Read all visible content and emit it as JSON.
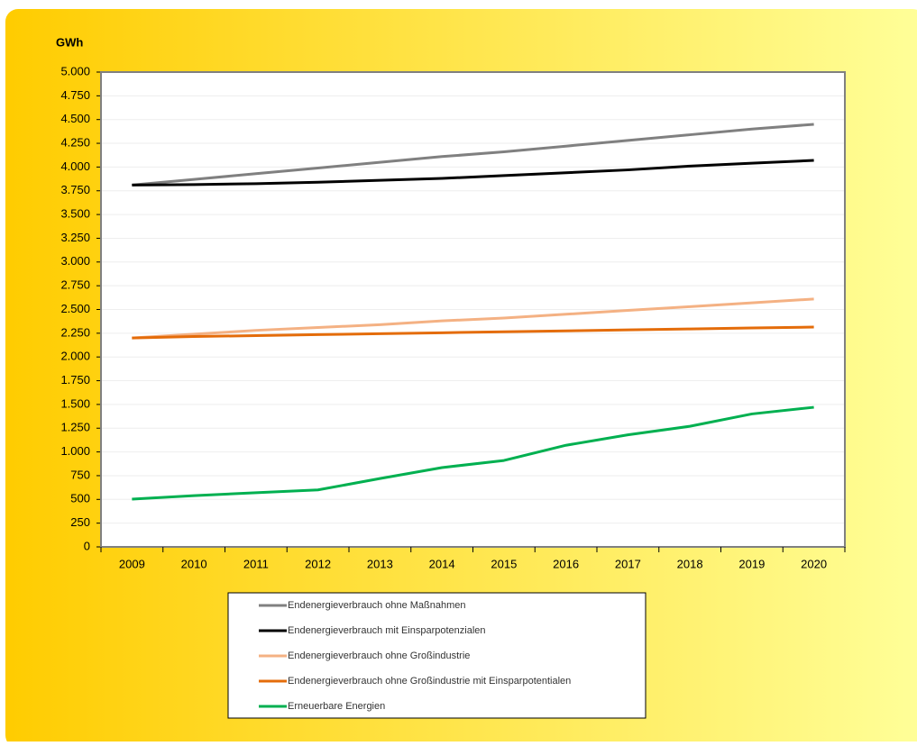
{
  "chart_data": {
    "type": "line",
    "y_label": "GWh",
    "categories": [
      "2009",
      "2010",
      "2011",
      "2012",
      "2013",
      "2014",
      "2015",
      "2016",
      "2017",
      "2018",
      "2019",
      "2020"
    ],
    "series": [
      {
        "name": "Endenergieverbrauch ohne Maßnahmen",
        "color": "#808080",
        "values": [
          3810,
          3870,
          3930,
          3990,
          4050,
          4110,
          4160,
          4220,
          4280,
          4340,
          4400,
          4450
        ]
      },
      {
        "name": "Endenergieverbrauch mit Einsparpotenzialen",
        "color": "#000000",
        "values": [
          3810,
          3815,
          3825,
          3840,
          3860,
          3880,
          3910,
          3940,
          3970,
          4010,
          4040,
          4070
        ]
      },
      {
        "name": "Endenergieverbrauch ohne Großindustrie",
        "color": "#f4b183",
        "values": [
          2200,
          2240,
          2280,
          2310,
          2340,
          2380,
          2410,
          2450,
          2490,
          2530,
          2570,
          2610
        ]
      },
      {
        "name": "Endenergieverbrauch ohne Großindustrie mit Einsparpotentialen",
        "color": "#e46c0a",
        "values": [
          2200,
          2215,
          2225,
          2235,
          2245,
          2255,
          2265,
          2275,
          2285,
          2295,
          2305,
          2315
        ]
      },
      {
        "name": "Erneuerbare Energien",
        "color": "#00b050",
        "values": [
          503,
          540,
          570,
          600,
          720,
          835,
          910,
          1070,
          1180,
          1270,
          1400,
          1470
        ]
      }
    ],
    "ylim": [
      0,
      5000
    ],
    "yticks": [
      0,
      250,
      500,
      750,
      {
        "value": 1000,
        "label": "1.000"
      },
      {
        "value": 1250,
        "label": "1.250"
      },
      {
        "value": 1500,
        "label": "1.500"
      },
      {
        "value": 1750,
        "label": "1.750"
      },
      {
        "value": 2000,
        "label": "2.000"
      },
      {
        "value": 2250,
        "label": "2.250"
      },
      {
        "value": 2500,
        "label": "2.500"
      },
      {
        "value": 2750,
        "label": "2.750"
      },
      {
        "value": 3000,
        "label": "3.000"
      },
      {
        "value": 3250,
        "label": "3.250"
      },
      {
        "value": 3500,
        "label": "3.500"
      },
      {
        "value": 3750,
        "label": "3.750"
      },
      {
        "value": 4000,
        "label": "4.000"
      },
      {
        "value": 4250,
        "label": "4.250"
      },
      {
        "value": 4500,
        "label": "4.500"
      },
      {
        "value": 4750,
        "label": "4.750"
      },
      {
        "value": 5000,
        "label": "5.000"
      }
    ],
    "grid": true
  }
}
